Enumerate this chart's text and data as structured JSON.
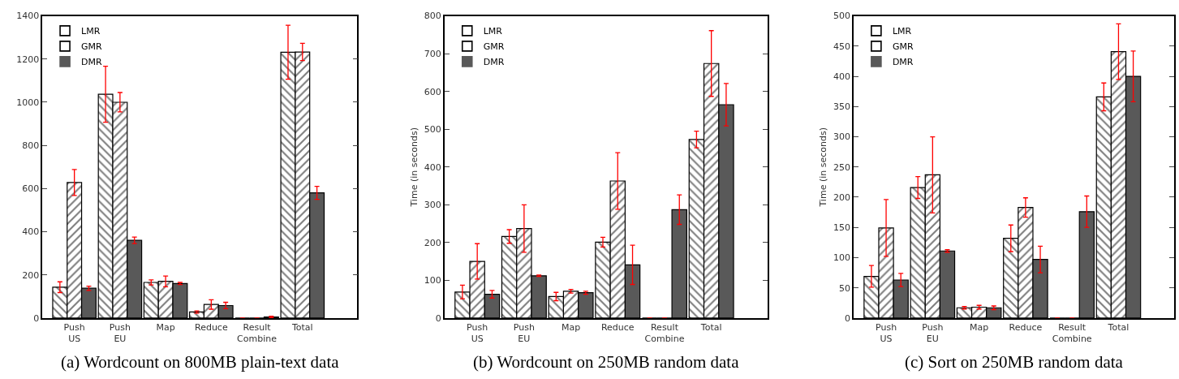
{
  "chart_data": [
    {
      "type": "bar",
      "title": "(a) Wordcount on 800MB plain-text data",
      "categories": [
        "Push\nUS",
        "Push\nEU",
        "Map",
        "Reduce",
        "Result\nCombine",
        "Total"
      ],
      "ylim": [
        0,
        1400
      ],
      "yticks": [
        0,
        200,
        400,
        600,
        800,
        1000,
        1200,
        1400
      ],
      "legend": "top left",
      "series": [
        {
          "name": "LMR",
          "color": "#000000",
          "values": [
            143,
            1037,
            165,
            28,
            0,
            1232
          ],
          "errors": [
            25,
            130,
            12,
            5,
            null,
            125
          ]
        },
        {
          "name": "GMR",
          "color": "#000000",
          "values": [
            628,
            1000,
            170,
            63,
            0,
            1233
          ],
          "errors": [
            60,
            45,
            25,
            22,
            null,
            40
          ]
        },
        {
          "name": "DMR",
          "color": "#595959",
          "values": [
            138,
            360,
            160,
            58,
            5,
            580
          ],
          "errors": [
            10,
            15,
            5,
            15,
            3,
            30
          ]
        }
      ]
    },
    {
      "type": "bar",
      "title": "(b) Wordcount on 250MB random data",
      "ylabel": "Time (in seconds)",
      "categories": [
        "Push\nUS",
        "Push\nEU",
        "Map",
        "Reduce",
        "Result\nCombine",
        "Total"
      ],
      "ylim": [
        0,
        800
      ],
      "yticks": [
        0,
        100,
        200,
        300,
        400,
        500,
        600,
        700,
        800
      ],
      "legend": "top left",
      "series": [
        {
          "name": "LMR",
          "color": "#000000",
          "values": [
            69,
            216,
            57,
            201,
            0,
            473
          ],
          "errors": [
            18,
            18,
            11,
            13,
            null,
            22
          ]
        },
        {
          "name": "GMR",
          "color": "#000000",
          "values": [
            150,
            237,
            71,
            363,
            0,
            674
          ],
          "errors": [
            47,
            63,
            5,
            75,
            null,
            87
          ]
        },
        {
          "name": "DMR",
          "color": "#595959",
          "values": [
            63,
            112,
            67,
            141,
            287,
            565
          ],
          "errors": [
            10,
            2,
            4,
            52,
            39,
            56
          ]
        }
      ]
    },
    {
      "type": "bar",
      "title": "(c) Sort on 250MB random data",
      "ylabel": "Time (in seconds)",
      "categories": [
        "Push\nUS",
        "Push\nEU",
        "Map",
        "Reduce",
        "Result\nCombine",
        "Total"
      ],
      "ylim": [
        0,
        500
      ],
      "yticks": [
        0,
        50,
        100,
        150,
        200,
        250,
        300,
        350,
        400,
        450,
        500
      ],
      "legend": "top left",
      "series": [
        {
          "name": "LMR",
          "color": "#000000",
          "values": [
            69,
            216,
            17,
            132,
            0,
            366
          ],
          "errors": [
            18,
            18,
            2,
            22,
            null,
            23
          ]
        },
        {
          "name": "GMR",
          "color": "#000000",
          "values": [
            149,
            237,
            18,
            183,
            0,
            441
          ],
          "errors": [
            47,
            63,
            3,
            16,
            null,
            46
          ]
        },
        {
          "name": "DMR",
          "color": "#595959",
          "values": [
            63,
            111,
            17,
            97,
            176,
            400
          ],
          "errors": [
            11,
            2,
            3,
            22,
            26,
            42
          ]
        }
      ]
    }
  ]
}
